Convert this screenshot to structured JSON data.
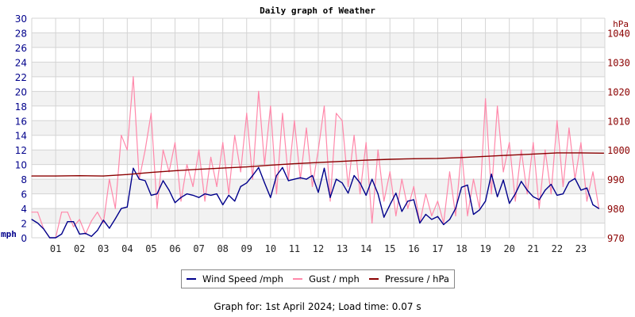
{
  "chart_data": {
    "type": "line",
    "title": "Daily graph of Weather",
    "x_ticks": [
      "01",
      "02",
      "03",
      "04",
      "05",
      "06",
      "07",
      "08",
      "09",
      "10",
      "11",
      "12",
      "13",
      "14",
      "15",
      "16",
      "17",
      "18",
      "19",
      "20",
      "21",
      "22",
      "23"
    ],
    "xlim": [
      0,
      24
    ],
    "y_left": {
      "label": "mph",
      "ylim": [
        0,
        30
      ],
      "ticks": [
        "0",
        "2",
        "4",
        "6",
        "8",
        "10",
        "12",
        "14",
        "16",
        "18",
        "20",
        "22",
        "24",
        "26",
        "28",
        "30"
      ]
    },
    "y_right": {
      "label": "hPa",
      "ylim": [
        970,
        1045
      ],
      "ticks": [
        "970",
        "980",
        "990",
        "1000",
        "1010",
        "1020",
        "1030",
        "1040"
      ]
    },
    "grid": true,
    "legend_position": "bottom",
    "x_step_hours": 0.25,
    "series": [
      {
        "name": "Wind Speed /mph",
        "axis": "left",
        "color": "#00008b",
        "values": [
          2.5,
          2.0,
          1.2,
          0,
          0,
          0.5,
          2.2,
          2.2,
          0.5,
          0.6,
          0.2,
          1.0,
          2.4,
          1.3,
          2.6,
          4.0,
          4.2,
          9.5,
          8.0,
          7.8,
          5.8,
          6.0,
          7.8,
          6.5,
          4.8,
          5.5,
          6.0,
          5.8,
          5.5,
          6.0,
          5.8,
          6.0,
          4.5,
          5.8,
          5.0,
          7.0,
          7.5,
          8.5,
          9.6,
          7.5,
          5.5,
          8.5,
          9.6,
          7.8,
          8.0,
          8.2,
          8.0,
          8.5,
          6.2,
          9.5,
          5.5,
          8.0,
          7.5,
          6.1,
          8.5,
          7.5,
          5.8,
          8.0,
          6.0,
          2.8,
          4.5,
          6.1,
          3.6,
          5.0,
          5.2,
          2.0,
          3.2,
          2.5,
          2.9,
          1.8,
          2.5,
          4.0,
          6.9,
          7.2,
          3.2,
          3.8,
          5.0,
          8.7,
          5.6,
          7.9,
          4.7,
          6.0,
          7.7,
          6.5,
          5.6,
          5.2,
          6.5,
          7.3,
          5.8,
          6.0,
          7.6,
          8.1,
          6.5,
          6.8,
          4.5,
          4.0
        ]
      },
      {
        "name": "Gust / mph",
        "axis": "left",
        "color": "#ff88aa",
        "values": [
          3.5,
          3.5,
          1.2,
          0,
          0,
          3.5,
          3.5,
          1.5,
          2.5,
          0.5,
          2.3,
          3.5,
          2,
          8,
          4,
          14,
          12,
          22,
          8,
          12,
          17,
          4,
          12,
          9,
          13,
          5,
          10,
          7,
          12,
          5,
          11,
          7,
          13,
          6,
          14,
          9,
          17,
          8,
          20,
          10,
          18,
          6,
          17,
          8,
          16,
          8,
          15,
          7,
          12,
          18,
          5,
          17,
          16,
          7,
          14,
          6,
          13,
          2,
          12,
          5,
          9,
          3,
          8,
          4,
          7,
          2,
          6,
          3,
          5,
          2,
          9,
          3,
          12,
          3,
          8,
          4,
          19,
          6,
          18,
          9,
          13,
          5,
          12,
          6,
          13,
          4,
          12,
          6,
          16,
          7,
          15,
          8,
          13,
          5,
          9,
          4
        ]
      },
      {
        "name": "Pressure / hPa",
        "axis": "right",
        "color": "#8b0000",
        "x_step_hours": 1,
        "values": [
          991.1,
          991.1,
          991.2,
          991.1,
          991.6,
          992.3,
          992.9,
          993.4,
          993.8,
          994.2,
          994.8,
          995.3,
          995.7,
          996.1,
          996.5,
          996.8,
          997.0,
          997.1,
          997.4,
          997.8,
          998.2,
          998.6,
          999.0,
          999.0,
          998.9
        ]
      }
    ]
  },
  "legend": {
    "items": [
      {
        "label": "Wind Speed /mph",
        "color": "#00008b"
      },
      {
        "label": "Gust / mph",
        "color": "#ff88aa"
      },
      {
        "label": "Pressure / hPa",
        "color": "#8b0000"
      }
    ]
  },
  "footer": {
    "text": "Graph for: 1st April 2024; Load time: 0.07 s"
  }
}
